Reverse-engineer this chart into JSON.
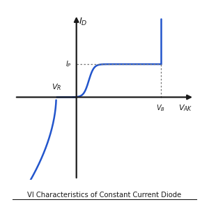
{
  "title": "VI Characteristics of Constant Current Diode",
  "bg_color": "#ffffff",
  "curve_color": "#2255cc",
  "axis_color": "#1a1a1a",
  "dot_line_color": "#777777",
  "x_range": [
    -5.5,
    10.5
  ],
  "y_range": [
    -5.5,
    5.5
  ],
  "vb_x": 7.5,
  "ip_y": 2.2,
  "vr_x": -1.8,
  "title_fontsize": 7.2,
  "label_fontsize": 9.5
}
